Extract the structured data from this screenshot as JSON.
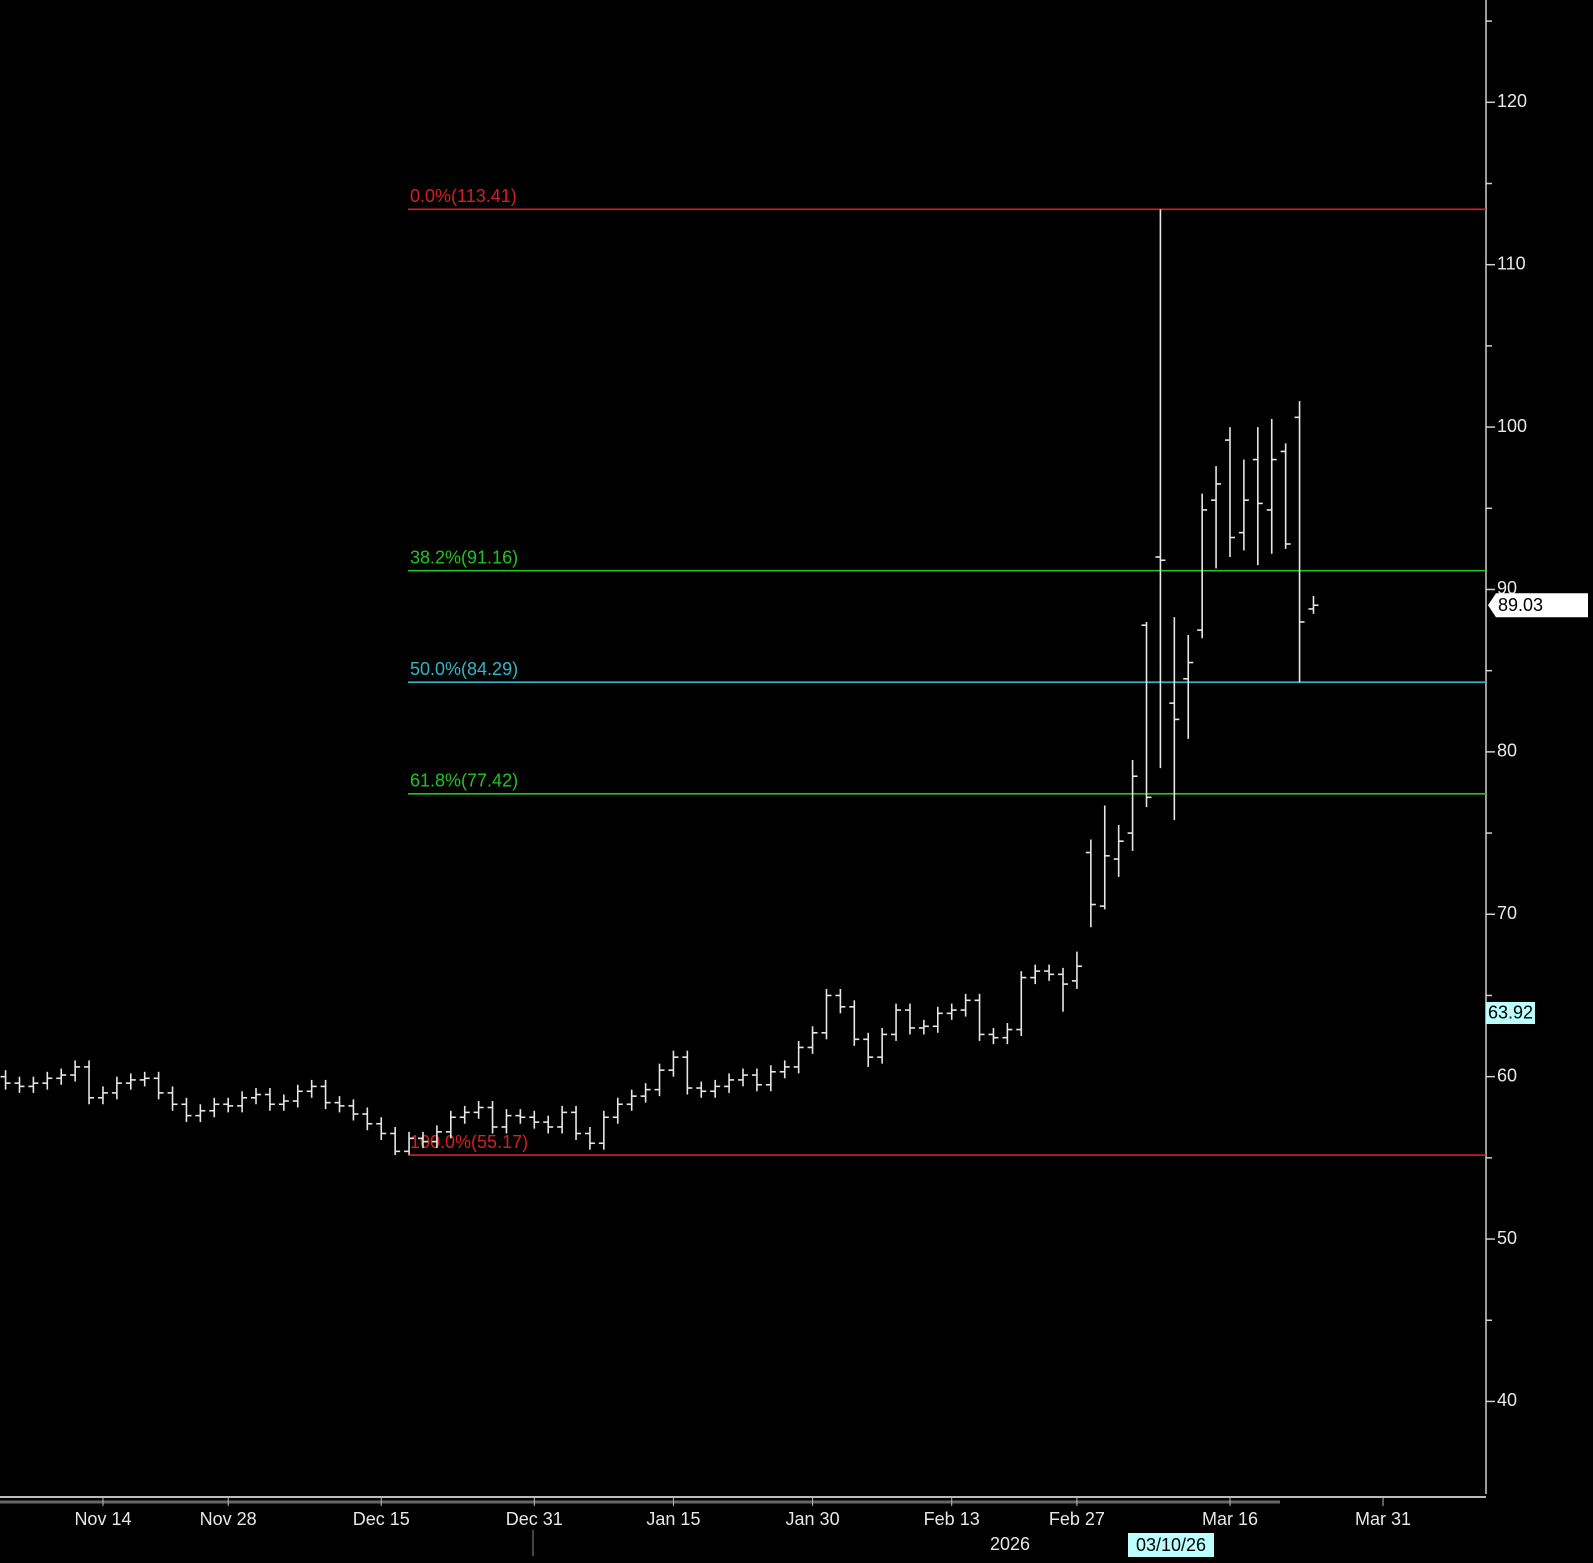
{
  "chart_data": {
    "type": "ohlc",
    "bar_color": "#e6e6e6",
    "open": [
      60.0,
      59.6,
      59.4,
      59.6,
      59.9,
      60.1,
      60.6,
      58.7,
      59.0,
      59.6,
      59.8,
      59.9,
      59.0,
      58.3,
      57.6,
      57.9,
      58.3,
      58.2,
      58.7,
      58.9,
      58.3,
      58.5,
      59.1,
      59.4,
      58.4,
      58.2,
      57.7,
      57.1,
      56.5,
      55.4,
      56.2,
      56.0,
      56.6,
      57.5,
      57.8,
      58.1,
      56.9,
      57.6,
      57.5,
      57.2,
      56.9,
      57.8,
      56.5,
      55.9,
      57.5,
      58.3,
      58.8,
      59.2,
      60.4,
      61.2,
      59.3,
      59.1,
      59.4,
      59.8,
      60.1,
      59.5,
      60.3,
      60.6,
      61.8,
      62.7,
      65.0,
      64.3,
      62.3,
      61.2,
      62.6,
      64.1,
      63.0,
      63.1,
      63.9,
      64.1,
      64.7,
      62.6,
      62.4,
      62.9,
      66.1,
      66.5,
      66.3,
      65.9,
      73.8,
      70.5,
      73.4,
      75.0,
      87.8,
      92.0,
      83.0,
      84.5,
      87.5,
      95.5,
      99.2,
      93.5,
      98.0,
      94.9,
      98.5,
      100.6,
      88.8
    ],
    "high": [
      60.4,
      60.0,
      60.0,
      60.3,
      60.5,
      61.0,
      61.0,
      59.4,
      60.0,
      60.2,
      60.3,
      60.3,
      59.4,
      58.7,
      58.3,
      58.7,
      58.7,
      59.1,
      59.3,
      59.3,
      58.9,
      59.5,
      59.8,
      59.8,
      58.8,
      58.6,
      58.1,
      57.5,
      56.9,
      56.6,
      56.6,
      57.0,
      57.9,
      58.2,
      58.5,
      58.5,
      58.0,
      58.0,
      57.9,
      57.6,
      58.2,
      58.2,
      56.9,
      57.9,
      58.7,
      59.2,
      59.6,
      60.8,
      61.6,
      61.6,
      59.7,
      59.8,
      60.2,
      60.5,
      60.5,
      60.7,
      61.0,
      62.2,
      63.1,
      65.4,
      65.4,
      64.7,
      62.7,
      63.0,
      64.5,
      64.5,
      63.5,
      64.3,
      64.5,
      65.1,
      65.1,
      63.0,
      63.3,
      66.5,
      66.9,
      66.9,
      66.7,
      67.7,
      74.6,
      76.7,
      75.5,
      79.5,
      88.0,
      113.41,
      88.3,
      87.2,
      95.9,
      97.6,
      100.0,
      98.0,
      100.0,
      100.5,
      99.0,
      101.6,
      89.6
    ],
    "low": [
      59.2,
      59.0,
      59.0,
      59.2,
      59.5,
      59.7,
      58.3,
      58.3,
      58.6,
      59.2,
      59.4,
      58.6,
      57.9,
      57.2,
      57.2,
      57.5,
      57.8,
      57.8,
      58.3,
      57.9,
      57.9,
      58.1,
      58.7,
      58.0,
      57.8,
      57.3,
      56.7,
      56.1,
      55.17,
      55.2,
      55.6,
      55.6,
      56.2,
      57.1,
      57.4,
      56.5,
      56.5,
      57.1,
      56.8,
      56.5,
      56.5,
      56.1,
      55.5,
      55.5,
      57.1,
      57.9,
      58.4,
      58.8,
      60.0,
      58.9,
      58.7,
      58.7,
      59.0,
      59.4,
      59.1,
      59.1,
      59.9,
      60.2,
      61.4,
      62.3,
      63.9,
      61.9,
      60.6,
      60.8,
      62.2,
      62.6,
      62.6,
      62.7,
      63.5,
      63.7,
      62.2,
      62.0,
      62.0,
      62.5,
      65.7,
      65.9,
      64.0,
      65.4,
      69.2,
      70.3,
      72.3,
      73.9,
      76.6,
      79.0,
      75.8,
      80.8,
      87.0,
      91.3,
      92.0,
      92.4,
      91.5,
      92.2,
      92.5,
      84.29,
      88.5
    ],
    "close": [
      59.6,
      59.4,
      59.6,
      59.9,
      60.1,
      60.6,
      58.7,
      59.0,
      59.6,
      59.8,
      59.9,
      59.0,
      58.3,
      57.6,
      57.9,
      58.3,
      58.2,
      58.7,
      58.9,
      58.3,
      58.5,
      59.1,
      59.4,
      58.4,
      58.2,
      57.7,
      57.1,
      56.5,
      55.4,
      56.2,
      56.0,
      56.6,
      57.5,
      57.8,
      58.1,
      56.9,
      57.6,
      57.5,
      57.2,
      56.9,
      57.8,
      56.5,
      55.9,
      57.5,
      58.3,
      58.8,
      59.2,
      60.4,
      61.2,
      59.3,
      59.1,
      59.4,
      59.8,
      60.1,
      59.5,
      60.3,
      60.6,
      61.8,
      62.7,
      65.0,
      64.3,
      62.3,
      61.2,
      62.6,
      64.1,
      63.0,
      63.1,
      63.9,
      64.1,
      64.7,
      62.6,
      62.4,
      62.9,
      66.1,
      66.5,
      66.3,
      65.7,
      66.8,
      70.6,
      73.6,
      74.5,
      78.5,
      77.2,
      91.8,
      82.0,
      85.5,
      94.9,
      96.5,
      93.2,
      95.5,
      95.3,
      98.0,
      92.8,
      88.0,
      89.03
    ],
    "levels": [
      {
        "label": "0.0%(113.41)",
        "value": 113.41,
        "color": "#d42020"
      },
      {
        "label": "38.2%(91.16)",
        "value": 91.16,
        "color": "#22c422"
      },
      {
        "label": "50.0%(84.29)",
        "value": 84.29,
        "color": "#2fb8c8"
      },
      {
        "label": "61.8%(77.42)",
        "value": 77.42,
        "color": "#22c422"
      },
      {
        "label": "100.0%(55.17)",
        "value": 55.17,
        "color": "#d42020"
      }
    ],
    "marker_value": 63.92,
    "ylim": [
      34.3,
      126.3
    ],
    "yticks": [
      40,
      50,
      60,
      70,
      80,
      90,
      100,
      110,
      120
    ],
    "minor_yticks": [
      45,
      55,
      65,
      75,
      85,
      95,
      105,
      115,
      125
    ],
    "xlim": [
      -0.4,
      106.4
    ],
    "xticks": [
      {
        "value": 7,
        "label": "Nov 14"
      },
      {
        "value": 16,
        "label": "Nov 28"
      },
      {
        "value": 27,
        "label": "Dec 15"
      },
      {
        "value": 38,
        "label": "Dec 31"
      },
      {
        "value": 48,
        "label": "Jan 15"
      },
      {
        "value": 58,
        "label": "Jan 30"
      },
      {
        "value": 68,
        "label": "Feb 13"
      },
      {
        "value": 77,
        "label": "Feb 27"
      },
      {
        "value": 88,
        "label": "Mar 16"
      },
      {
        "value": 99,
        "label": "Mar 31"
      }
    ],
    "year_label": "2026",
    "cursor_label": "03/10/26"
  }
}
